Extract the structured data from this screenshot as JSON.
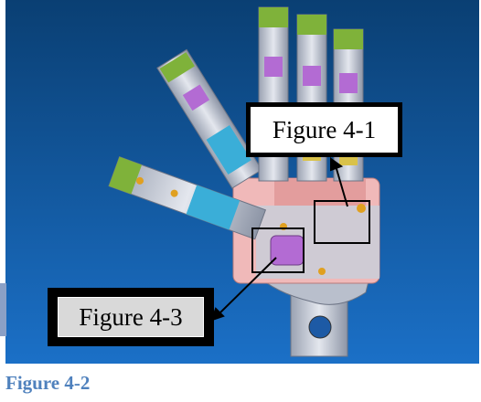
{
  "callouts": {
    "figure_4_1": "Figure 4-1",
    "figure_4_3": "Figure 4-3"
  },
  "caption": "Figure 4-2",
  "colors": {
    "background_top": "#0a3f73",
    "background_bottom": "#1b70c7",
    "caption": "#4f81bd",
    "palm": "#e8a8a8",
    "finger_green": "#7fb23a",
    "finger_purple": "#b36bd3",
    "finger_cyan": "#3aaed8",
    "metal": "#c8ccd6"
  }
}
